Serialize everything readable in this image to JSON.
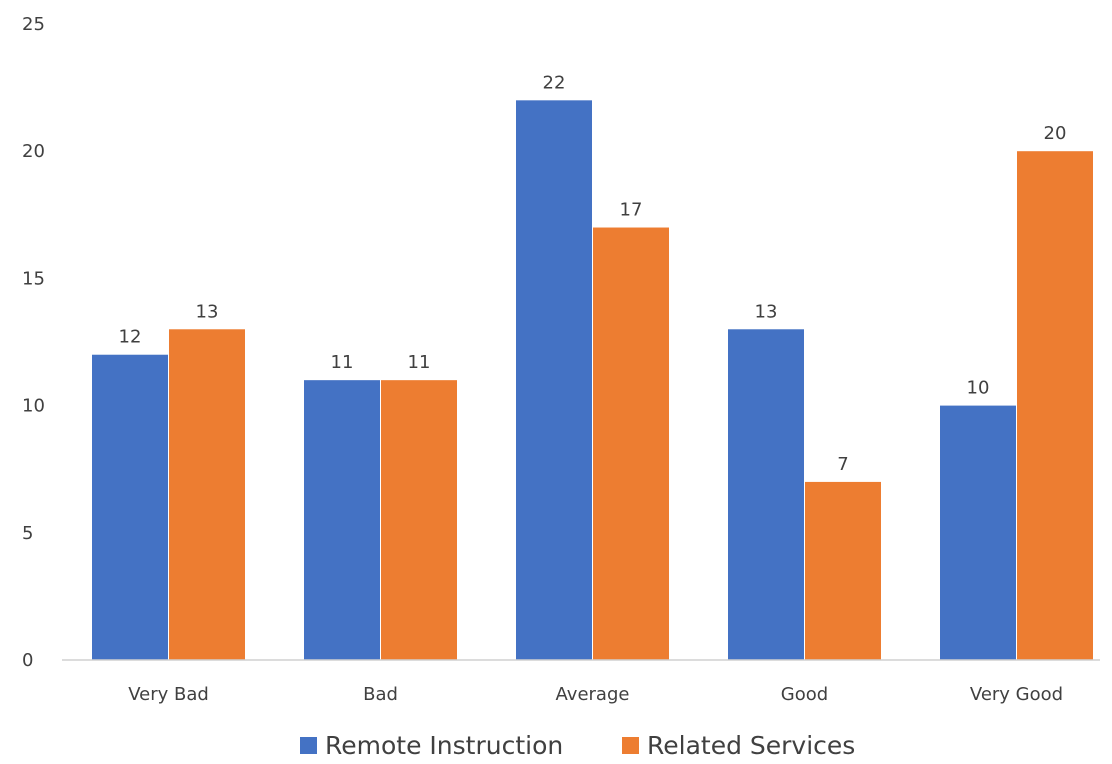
{
  "chart_data": {
    "type": "bar",
    "categories": [
      "Very Bad",
      "Bad",
      "Average",
      "Good",
      "Very Good"
    ],
    "series": [
      {
        "name": "Remote Instruction",
        "color": "#4472C4",
        "values": [
          12,
          11,
          22,
          13,
          10
        ]
      },
      {
        "name": "Related Services",
        "color": "#ED7D31",
        "values": [
          13,
          11,
          17,
          7,
          20
        ]
      }
    ],
    "ylim": [
      0,
      25
    ],
    "yticks": [
      0,
      5,
      10,
      15,
      20,
      25
    ],
    "data_labels": true,
    "grid": false,
    "legend": "bottom-center"
  }
}
